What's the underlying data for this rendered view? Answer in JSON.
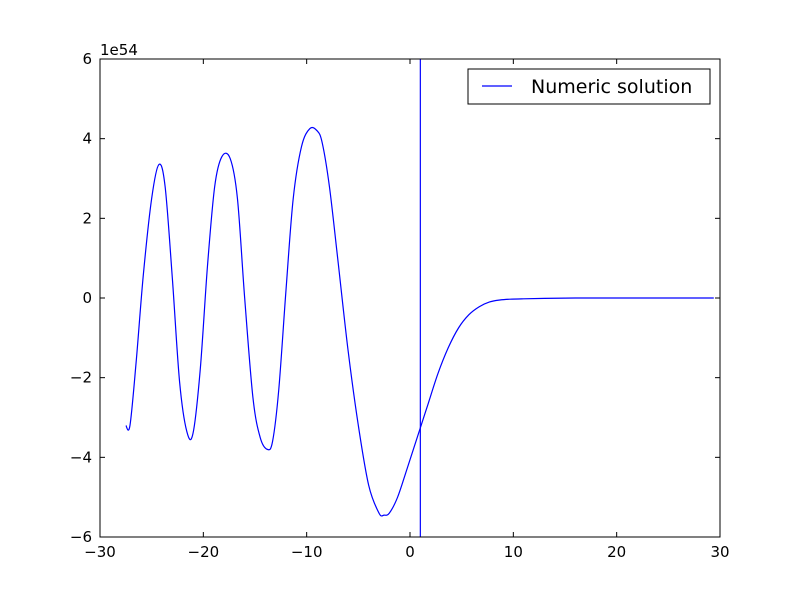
{
  "chart_data": {
    "type": "line",
    "title": "",
    "xlabel": "",
    "ylabel": "",
    "xlim": [
      -30,
      30
    ],
    "ylim": [
      -6,
      6
    ],
    "y_scale_factor": "1e54",
    "x_ticks": [
      -30,
      -20,
      -10,
      0,
      10,
      20,
      30
    ],
    "x_tick_labels": [
      "−30",
      "−20",
      "−10",
      "0",
      "10",
      "20",
      "30"
    ],
    "y_ticks": [
      -6,
      -4,
      -2,
      0,
      2,
      4,
      6
    ],
    "y_tick_labels": [
      "−6",
      "−4",
      "−2",
      "0",
      "2",
      "4",
      "6"
    ],
    "grid": false,
    "legend_position": "top-right",
    "colors": {
      "series": "#0000ff",
      "axes": "#000000",
      "background": "#ffffff"
    },
    "series": [
      {
        "name": "Numeric solution",
        "color": "#0000ff",
        "x": [
          -27.5,
          -27.1,
          -26.5,
          -25.8,
          -25.0,
          -24.3,
          -23.7,
          -23.0,
          -22.3,
          -21.6,
          -21.0,
          -20.3,
          -19.6,
          -18.9,
          -18.2,
          -17.4,
          -16.7,
          -16.0,
          -15.2,
          -14.5,
          -13.8,
          -13.3,
          -12.7,
          -12.0,
          -11.3,
          -10.5,
          -9.7,
          -9.0,
          -8.5,
          -7.8,
          -7.0,
          -6.0,
          -5.0,
          -4.0,
          -3.0,
          -2.5,
          -2.0,
          -1.2,
          -0.3,
          0.7,
          1.7,
          2.7,
          3.7,
          4.7,
          5.7,
          6.7,
          7.7,
          8.7,
          9.7,
          11.0,
          13.0,
          16.0,
          20.0,
          25.0,
          29.4
        ],
        "y": [
          -3.2,
          -3.2,
          -1.6,
          0.6,
          2.5,
          3.35,
          2.8,
          0.5,
          -2.1,
          -3.35,
          -3.4,
          -1.8,
          0.8,
          2.8,
          3.55,
          3.5,
          2.5,
          0.0,
          -2.5,
          -3.5,
          -3.8,
          -3.6,
          -2.3,
          0.2,
          2.5,
          3.8,
          4.25,
          4.2,
          3.9,
          2.8,
          1.0,
          -1.3,
          -3.2,
          -4.7,
          -5.4,
          -5.45,
          -5.4,
          -5.0,
          -4.3,
          -3.5,
          -2.7,
          -1.9,
          -1.25,
          -0.75,
          -0.42,
          -0.22,
          -0.1,
          -0.05,
          -0.03,
          -0.02,
          -0.01,
          0.0,
          0.0,
          0.0,
          0.0
        ]
      }
    ],
    "annotations": [
      {
        "type": "vertical-line",
        "x": 1.0,
        "color": "#0000ff"
      }
    ]
  }
}
